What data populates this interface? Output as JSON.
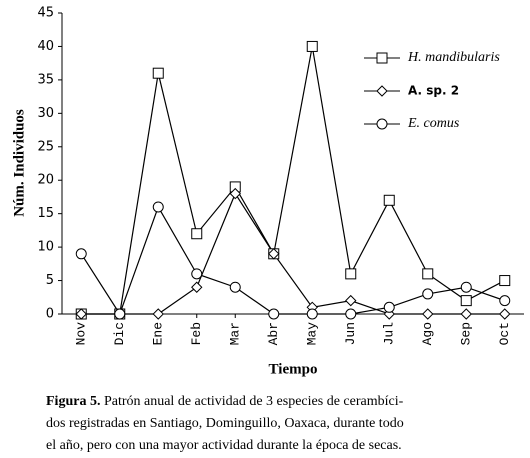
{
  "chart_data": {
    "type": "line",
    "y_label": "Núm. Individuos",
    "x_label": "Tiempo",
    "categories": [
      "Nov",
      "Dic",
      "Ene",
      "Feb",
      "Mar",
      "Abr",
      "May",
      "Jun",
      "Jul",
      "Ago",
      "Sep",
      "Oct"
    ],
    "series": [
      {
        "name": "H. mandibularis",
        "color": "#000000",
        "marker": "square",
        "values": [
          0,
          0,
          36,
          12,
          19,
          9,
          40,
          6,
          17,
          6,
          2,
          5
        ]
      },
      {
        "name": "A. sp. 2",
        "color": "#000000",
        "marker": "diamond",
        "values": [
          0,
          0,
          0,
          4,
          18,
          9,
          1,
          2,
          0,
          0,
          0,
          0
        ]
      },
      {
        "name": "E. comus",
        "color": "#000000",
        "marker": "circle",
        "values": [
          9,
          0,
          16,
          6,
          4,
          0,
          0,
          0,
          1,
          3,
          4,
          2
        ]
      }
    ],
    "ylim": [
      0,
      45
    ],
    "yticks": [
      0,
      5,
      10,
      15,
      20,
      25,
      30,
      35,
      40,
      45
    ],
    "grid": false,
    "legend": "upper right"
  },
  "caption": {
    "label": "Figura 5.",
    "lines": [
      "Patrón anual de actividad de 3 especies de cerambíci-",
      "dos registradas en Santiago, Dominguillo, Oaxaca, durante todo",
      "el año, pero con una mayor actividad durante la época de secas."
    ]
  }
}
